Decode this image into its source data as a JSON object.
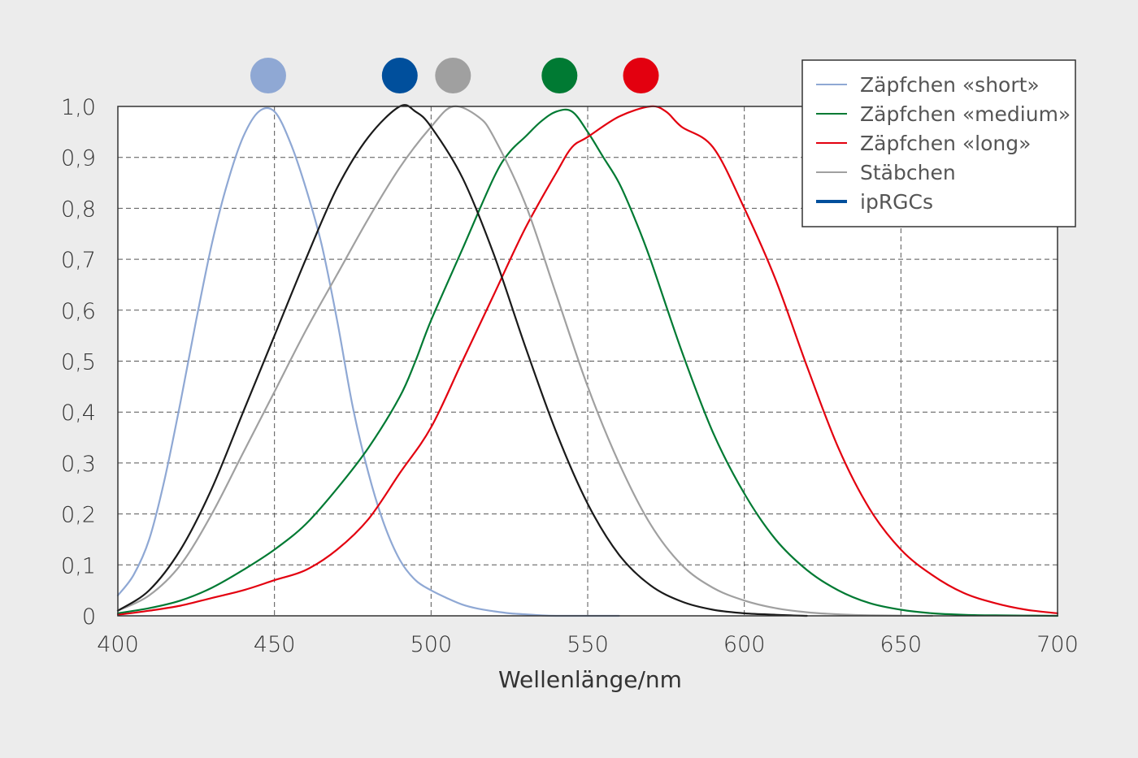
{
  "chart_data": {
    "type": "line",
    "xlabel": "Wellenlänge/nm",
    "ylabel": "",
    "xlim": [
      400,
      700
    ],
    "ylim": [
      0,
      1.0
    ],
    "x_ticks": [
      "400",
      "450",
      "500",
      "550",
      "600",
      "650",
      "700"
    ],
    "x_tick_values": [
      400,
      450,
      500,
      550,
      600,
      650,
      700
    ],
    "y_ticks": [
      "0",
      "0,1",
      "0,2",
      "0,3",
      "0,4",
      "0,5",
      "0,6",
      "0,7",
      "0,8",
      "0,9",
      "1,0"
    ],
    "y_tick_values": [
      0,
      0.1,
      0.2,
      0.3,
      0.4,
      0.5,
      0.6,
      0.7,
      0.8,
      0.9,
      1.0
    ],
    "grid": true,
    "grid_style": "dashed",
    "legend_position": "top-right",
    "peak_markers": [
      {
        "x": 448,
        "color": "#8fa8d4"
      },
      {
        "x": 490,
        "color": "#004f9c"
      },
      {
        "x": 507,
        "color": "#a0a0a0"
      },
      {
        "x": 541,
        "color": "#007a33"
      },
      {
        "x": 567,
        "color": "#e3000f"
      }
    ],
    "series": [
      {
        "name": "Zäpfchen «short»",
        "color": "#8fa8d4",
        "points": [
          [
            400,
            0.04
          ],
          [
            405,
            0.08
          ],
          [
            410,
            0.15
          ],
          [
            415,
            0.27
          ],
          [
            420,
            0.42
          ],
          [
            425,
            0.58
          ],
          [
            430,
            0.73
          ],
          [
            435,
            0.85
          ],
          [
            440,
            0.94
          ],
          [
            445,
            0.99
          ],
          [
            450,
            0.99
          ],
          [
            455,
            0.93
          ],
          [
            460,
            0.84
          ],
          [
            465,
            0.73
          ],
          [
            470,
            0.58
          ],
          [
            475,
            0.41
          ],
          [
            480,
            0.28
          ],
          [
            485,
            0.18
          ],
          [
            490,
            0.11
          ],
          [
            495,
            0.07
          ],
          [
            500,
            0.05
          ],
          [
            505,
            0.035
          ],
          [
            510,
            0.022
          ],
          [
            515,
            0.014
          ],
          [
            520,
            0.009
          ],
          [
            525,
            0.005
          ],
          [
            530,
            0.003
          ],
          [
            535,
            0.001
          ],
          [
            540,
            0
          ],
          [
            550,
            0
          ],
          [
            560,
            0
          ]
        ]
      },
      {
        "name": "Zäpfchen «medium»",
        "color": "#007a33",
        "points": [
          [
            400,
            0.005
          ],
          [
            410,
            0.015
          ],
          [
            420,
            0.03
          ],
          [
            430,
            0.055
          ],
          [
            440,
            0.09
          ],
          [
            450,
            0.13
          ],
          [
            460,
            0.18
          ],
          [
            470,
            0.25
          ],
          [
            480,
            0.33
          ],
          [
            490,
            0.43
          ],
          [
            495,
            0.5
          ],
          [
            500,
            0.58
          ],
          [
            510,
            0.72
          ],
          [
            520,
            0.86
          ],
          [
            525,
            0.91
          ],
          [
            530,
            0.94
          ],
          [
            535,
            0.97
          ],
          [
            540,
            0.99
          ],
          [
            545,
            0.99
          ],
          [
            550,
            0.95
          ],
          [
            555,
            0.9
          ],
          [
            560,
            0.85
          ],
          [
            565,
            0.78
          ],
          [
            570,
            0.7
          ],
          [
            580,
            0.52
          ],
          [
            590,
            0.36
          ],
          [
            600,
            0.24
          ],
          [
            610,
            0.15
          ],
          [
            620,
            0.09
          ],
          [
            630,
            0.05
          ],
          [
            640,
            0.025
          ],
          [
            650,
            0.012
          ],
          [
            660,
            0.005
          ],
          [
            670,
            0.002
          ],
          [
            680,
            0.001
          ],
          [
            700,
            0
          ]
        ]
      },
      {
        "name": "Zäpfchen «long»",
        "color": "#e3000f",
        "points": [
          [
            400,
            0.002
          ],
          [
            410,
            0.01
          ],
          [
            420,
            0.02
          ],
          [
            430,
            0.035
          ],
          [
            440,
            0.05
          ],
          [
            450,
            0.07
          ],
          [
            460,
            0.09
          ],
          [
            470,
            0.13
          ],
          [
            480,
            0.19
          ],
          [
            490,
            0.28
          ],
          [
            500,
            0.37
          ],
          [
            510,
            0.5
          ],
          [
            520,
            0.63
          ],
          [
            530,
            0.76
          ],
          [
            540,
            0.87
          ],
          [
            545,
            0.92
          ],
          [
            550,
            0.94
          ],
          [
            560,
            0.98
          ],
          [
            570,
            1.0
          ],
          [
            575,
            0.99
          ],
          [
            580,
            0.96
          ],
          [
            590,
            0.92
          ],
          [
            600,
            0.8
          ],
          [
            610,
            0.66
          ],
          [
            620,
            0.49
          ],
          [
            630,
            0.33
          ],
          [
            640,
            0.21
          ],
          [
            650,
            0.13
          ],
          [
            660,
            0.08
          ],
          [
            670,
            0.045
          ],
          [
            680,
            0.025
          ],
          [
            690,
            0.012
          ],
          [
            700,
            0.005
          ]
        ]
      },
      {
        "name": "Stäbchen",
        "color": "#a0a0a0",
        "points": [
          [
            400,
            0.01
          ],
          [
            410,
            0.04
          ],
          [
            420,
            0.1
          ],
          [
            430,
            0.2
          ],
          [
            440,
            0.32
          ],
          [
            450,
            0.44
          ],
          [
            460,
            0.56
          ],
          [
            470,
            0.67
          ],
          [
            480,
            0.78
          ],
          [
            490,
            0.88
          ],
          [
            500,
            0.96
          ],
          [
            507,
            1.0
          ],
          [
            515,
            0.98
          ],
          [
            520,
            0.94
          ],
          [
            530,
            0.81
          ],
          [
            540,
            0.63
          ],
          [
            550,
            0.45
          ],
          [
            560,
            0.3
          ],
          [
            570,
            0.18
          ],
          [
            580,
            0.1
          ],
          [
            590,
            0.055
          ],
          [
            600,
            0.03
          ],
          [
            610,
            0.015
          ],
          [
            620,
            0.007
          ],
          [
            630,
            0.003
          ],
          [
            640,
            0.001
          ],
          [
            660,
            0
          ]
        ]
      },
      {
        "name": "ipRGCs",
        "color": "#1a1a1a",
        "legend_color": "#004f9c",
        "points": [
          [
            400,
            0.01
          ],
          [
            410,
            0.05
          ],
          [
            420,
            0.13
          ],
          [
            430,
            0.25
          ],
          [
            440,
            0.4
          ],
          [
            450,
            0.55
          ],
          [
            460,
            0.7
          ],
          [
            470,
            0.84
          ],
          [
            480,
            0.94
          ],
          [
            490,
            1.0
          ],
          [
            495,
            0.99
          ],
          [
            500,
            0.96
          ],
          [
            510,
            0.86
          ],
          [
            520,
            0.71
          ],
          [
            530,
            0.53
          ],
          [
            540,
            0.36
          ],
          [
            550,
            0.22
          ],
          [
            560,
            0.12
          ],
          [
            570,
            0.06
          ],
          [
            580,
            0.028
          ],
          [
            590,
            0.012
          ],
          [
            600,
            0.005
          ],
          [
            610,
            0.002
          ],
          [
            620,
            0
          ]
        ]
      }
    ]
  }
}
